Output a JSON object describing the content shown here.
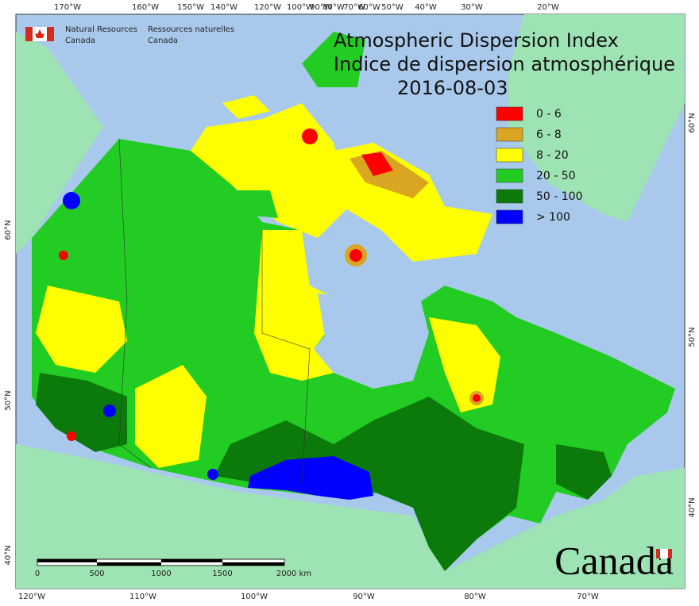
{
  "header": {
    "agency_en": [
      "Natural Resources",
      "Canada"
    ],
    "agency_fr": [
      "Ressources naturelles",
      "Canada"
    ]
  },
  "title": {
    "line1": "Atmospheric Dispersion Index",
    "line2": "Indice de dispersion atmosphérique",
    "date": "2016-08-03"
  },
  "legend": [
    {
      "label": "0 - 6",
      "color": "#ff0000"
    },
    {
      "label": "6 - 8",
      "color": "#daa520"
    },
    {
      "label": "8 - 20",
      "color": "#ffff00"
    },
    {
      "label": "20 - 50",
      "color": "#22cc22"
    },
    {
      "label": "50 - 100",
      "color": "#0b7a0b"
    },
    {
      "label": "> 100",
      "color": "#0000ff"
    }
  ],
  "graticule": {
    "top": [
      "170°W",
      "160°W",
      "150°W",
      "140°W",
      "120°W",
      "100°W",
      "90°W",
      "80°W",
      "70°W",
      "60°W",
      "50°W",
      "40°W",
      "30°W",
      "20°W"
    ],
    "bottom": [
      "120°W",
      "110°W",
      "100°W",
      "90°W",
      "80°W",
      "70°W"
    ],
    "left": [
      "60°N",
      "50°N",
      "40°N"
    ],
    "right": [
      "60°N",
      "50°N",
      "40°N"
    ]
  },
  "scale_bar": {
    "labels": [
      "0",
      "500",
      "1000",
      "1500",
      "2000 km"
    ]
  },
  "wordmark": "Canada"
}
